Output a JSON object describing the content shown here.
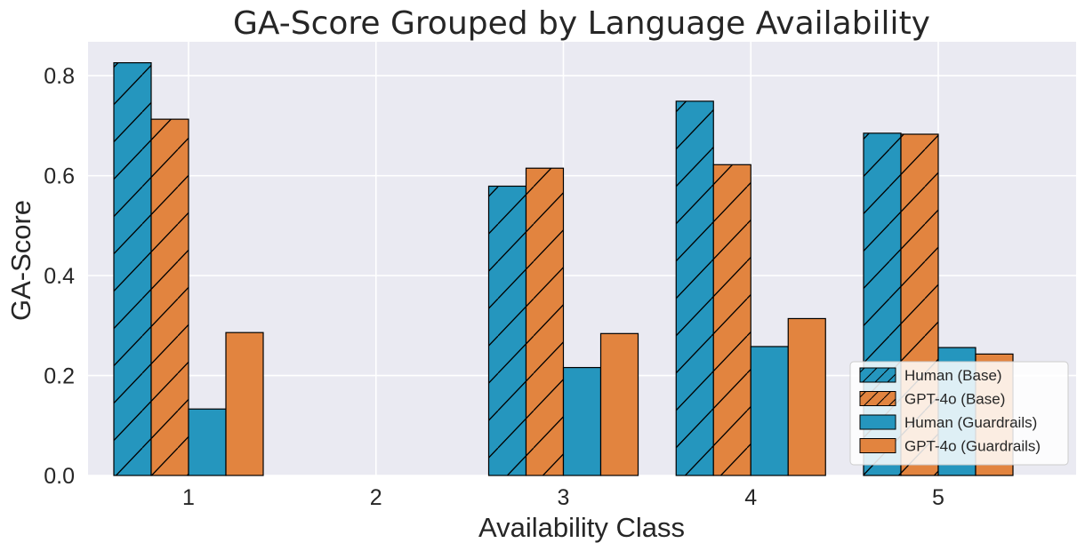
{
  "chart_data": {
    "type": "bar",
    "title": "GA-Score Grouped by Language Availability",
    "xlabel": "Availability Class",
    "ylabel": "GA-Score",
    "categories": [
      "1",
      "2",
      "3",
      "4",
      "5"
    ],
    "ylim": [
      0,
      0.868
    ],
    "yticks": [
      "0.0",
      "0.2",
      "0.4",
      "0.6",
      "0.8"
    ],
    "grid": true,
    "legend_position": "lower-right",
    "series": [
      {
        "name": "Human (Base)",
        "color": "#2596be",
        "hatch": true,
        "values": [
          0.826,
          null,
          0.579,
          0.749,
          0.685
        ]
      },
      {
        "name": "GPT-4o (Base)",
        "color": "#e2843f",
        "hatch": true,
        "values": [
          0.713,
          null,
          0.615,
          0.622,
          0.683
        ]
      },
      {
        "name": "Human (Guardrails)",
        "color": "#2596be",
        "hatch": false,
        "values": [
          0.133,
          null,
          0.216,
          0.258,
          0.256
        ]
      },
      {
        "name": "GPT-4o (Guardrails)",
        "color": "#e2843f",
        "hatch": false,
        "values": [
          0.286,
          null,
          0.284,
          0.314,
          0.243
        ]
      }
    ],
    "background": "#eaeaf2",
    "gridColor": "#ffffff"
  }
}
